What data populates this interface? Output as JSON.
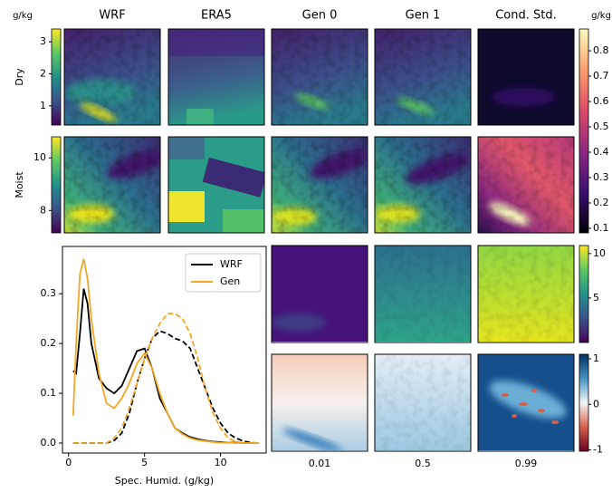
{
  "chart_data": [
    {
      "type": "image-grid",
      "columns": [
        "WRF",
        "ERA5",
        "Gen 0",
        "Gen 1",
        "Cond. Std."
      ],
      "rows": [
        "Dry",
        "Moist"
      ],
      "colorbars": [
        {
          "label": "g/kg",
          "colormap": "viridis",
          "ylim": [
            0.4,
            3.4
          ],
          "yticks": [
            1,
            2,
            3
          ]
        },
        {
          "colormap": "viridis",
          "ylim": [
            7.15,
            10.8
          ],
          "yticks": [
            8,
            10
          ]
        },
        {
          "label": "g/kg",
          "colormap": "magma",
          "ylim": [
            0.082,
            0.886
          ],
          "yticks": [
            0.1,
            0.2,
            0.3,
            0.4,
            0.5,
            0.6,
            0.7,
            0.8
          ]
        }
      ]
    },
    {
      "type": "line",
      "xlabel": "Spec. Humid. (g/kg)",
      "x": [
        0.3,
        0.5,
        0.75,
        1,
        1.25,
        1.5,
        2,
        2.5,
        3,
        3.5,
        4,
        4.5,
        5,
        5.5,
        6,
        6.5,
        7,
        7.5,
        8,
        8.5,
        9,
        9.5,
        10,
        10.5,
        11,
        11.5,
        12,
        12.5
      ],
      "xlim": [
        -0.4,
        13
      ],
      "ylim": [
        -0.02,
        0.395
      ],
      "xticks": [
        0,
        5,
        10
      ],
      "yticks": [
        {
          "value": 0,
          "label": "0.0"
        },
        0.1,
        0.2,
        0.3
      ],
      "legend": "upper right",
      "series": [
        {
          "name": "WRF",
          "color": "#000000",
          "values": [
            0.145,
            0.14,
            0.22,
            0.31,
            0.28,
            0.2,
            0.13,
            0.11,
            0.1,
            0.115,
            0.15,
            0.185,
            0.19,
            0.15,
            0.09,
            0.06,
            0.03,
            0.02,
            0.012,
            0.008,
            0.005,
            0.003,
            0.002,
            0.001,
            0.001,
            0,
            0,
            0
          ],
          "moist_values": [
            0,
            0,
            0,
            0,
            0,
            0,
            0,
            0,
            0.005,
            0.02,
            0.06,
            0.12,
            0.17,
            0.21,
            0.225,
            0.22,
            0.21,
            0.205,
            0.19,
            0.15,
            0.11,
            0.07,
            0.04,
            0.02,
            0.01,
            0.004,
            0.001,
            0
          ]
        },
        {
          "name": "Gen",
          "color": "#f5a623",
          "values": [
            0.055,
            0.2,
            0.34,
            0.37,
            0.33,
            0.25,
            0.14,
            0.08,
            0.07,
            0.09,
            0.12,
            0.16,
            0.18,
            0.15,
            0.1,
            0.06,
            0.03,
            0.018,
            0.01,
            0.006,
            0.004,
            0.002,
            0.001,
            0.001,
            0,
            0,
            0,
            0
          ],
          "moist_values": [
            0,
            0,
            0,
            0,
            0,
            0,
            0,
            0,
            0.01,
            0.03,
            0.07,
            0.12,
            0.17,
            0.21,
            0.24,
            0.26,
            0.26,
            0.25,
            0.22,
            0.17,
            0.11,
            0.06,
            0.03,
            0.01,
            0.003,
            0,
            0,
            0
          ]
        }
      ]
    },
    {
      "type": "quantile-images",
      "quantiles": [
        0.01,
        0.5,
        0.99
      ],
      "colorbars": [
        {
          "colormap": "viridis",
          "ylim": [
            0,
            10.9
          ],
          "yticks": [
            5,
            10
          ]
        },
        {
          "colormap": "RdBu",
          "ylim": [
            -1.03,
            1.1
          ],
          "yticks": [
            -1,
            0,
            1
          ]
        }
      ]
    }
  ]
}
